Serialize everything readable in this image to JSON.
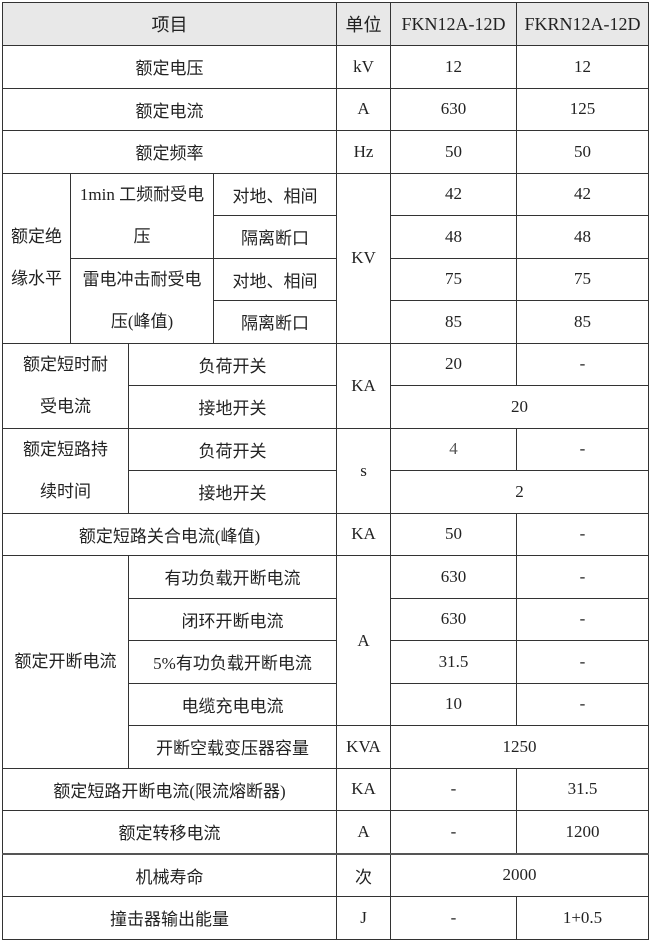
{
  "header": {
    "item": "项目",
    "unit": "单位",
    "model_a": "FKN12A-12D",
    "model_b": "FKRN12A-12D"
  },
  "basic_rows": [
    {
      "item": "额定电压",
      "unit": "kV",
      "a": "12",
      "b": "12"
    },
    {
      "item": "额定电流",
      "unit": "A",
      "a": "630",
      "b": "125"
    },
    {
      "item": "额定频率",
      "unit": "Hz",
      "a": "50",
      "b": "50"
    }
  ],
  "insulation": {
    "group": "额定绝缘水平",
    "unit": "KV",
    "power_freq": "1min 工频耐受电压",
    "lightning": "雷电冲击耐受电压(峰值)",
    "rows": [
      {
        "sub": "对地、相间",
        "a": "42",
        "b": "42"
      },
      {
        "sub": "隔离断口",
        "a": "48",
        "b": "48"
      },
      {
        "sub": "对地、相间",
        "a": "75",
        "b": "75"
      },
      {
        "sub": "隔离断口",
        "a": "85",
        "b": "85"
      }
    ]
  },
  "short_time": {
    "group": "额定短时耐受电流",
    "unit": "KA",
    "rows": [
      {
        "sub": "负荷开关",
        "a": "20",
        "b": "-"
      },
      {
        "sub": "接地开关",
        "merged": "20"
      }
    ]
  },
  "short_duration": {
    "group": "额定短路持续时间",
    "unit": "s",
    "rows": [
      {
        "sub": "负荷开关",
        "a": "4",
        "b": "-"
      },
      {
        "sub": "接地开关",
        "merged": "2"
      }
    ]
  },
  "making": {
    "item": "额定短路关合电流(峰值)",
    "unit": "KA",
    "a": "50",
    "b": "-"
  },
  "breaking": {
    "group": "额定开断电流",
    "unit": "A",
    "rows": [
      {
        "sub": "有功负载开断电流",
        "a": "630",
        "b": "-"
      },
      {
        "sub": "闭环开断电流",
        "a": "630",
        "b": "-"
      },
      {
        "sub": "5%有功负载开断电流",
        "a": "31.5",
        "b": "-"
      },
      {
        "sub": "电缆充电电流",
        "a": "10",
        "b": "-"
      }
    ],
    "transformer": {
      "sub": "开断空载变压器容量",
      "unit": "KVA",
      "merged": "1250"
    }
  },
  "tail_rows": [
    {
      "item": "额定短路开断电流(限流熔断器)",
      "unit": "KA",
      "a": "-",
      "b": "31.5"
    },
    {
      "item": "额定转移电流",
      "unit": "A",
      "a": "-",
      "b": "1200"
    }
  ],
  "mechanical": {
    "item": "机械寿命",
    "unit": "次",
    "merged": "2000"
  },
  "striker": {
    "item": "撞击器输出能量",
    "unit": "J",
    "a": "-",
    "b": "1+0.5"
  }
}
